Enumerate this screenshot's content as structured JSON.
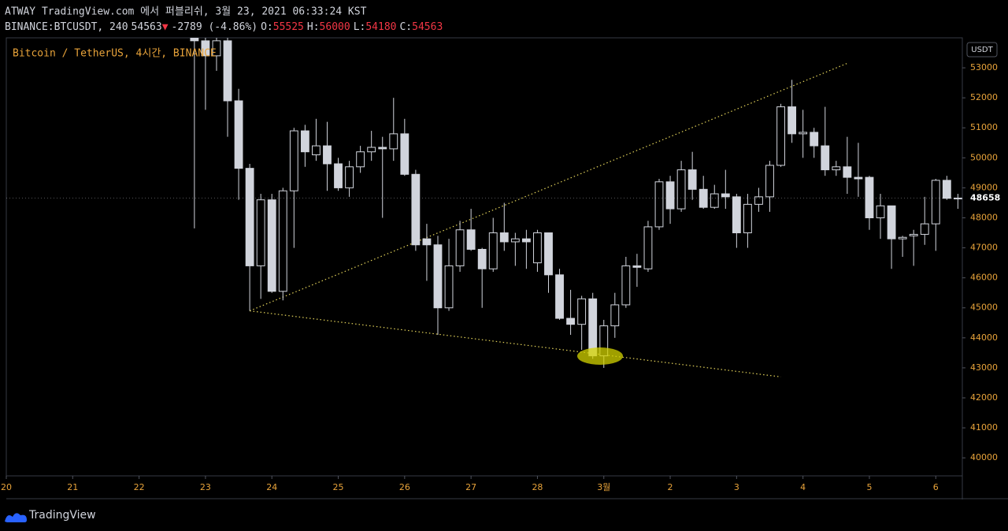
{
  "header": {
    "title": "ATWAY TradingView.com 에서 퍼블리쉬, 3월 23, 2021 06:33:24 KST",
    "segments": [
      {
        "text": "BINANCE:BTCUSDT, 240",
        "color": "#d1d4dc"
      },
      {
        "text": "54563",
        "color": "#d1d4dc"
      },
      {
        "text": "▼",
        "color": "#f23645"
      },
      {
        "text": "-2789 (-4.86%)",
        "color": "#d1d4dc"
      },
      {
        "text": "O:",
        "color": "#d1d4dc"
      },
      {
        "text": "55525",
        "color": "#f23645"
      },
      {
        "text": "H:",
        "color": "#d1d4dc"
      },
      {
        "text": "56000",
        "color": "#f23645"
      },
      {
        "text": "L:",
        "color": "#d1d4dc"
      },
      {
        "text": "54180",
        "color": "#f23645"
      },
      {
        "text": "C:",
        "color": "#d1d4dc"
      },
      {
        "text": "54563",
        "color": "#f23645"
      }
    ]
  },
  "footer": {
    "brand": "TradingView"
  },
  "chart_data": {
    "type": "candlestick",
    "legend": "Bitcoin / TetherUS, 4시간, BINANCE",
    "currency": "USDT",
    "last_price": 48658,
    "up_color": "#000000",
    "down_color": "#d1d4dc",
    "outline_color": "#d1d4dc",
    "trendline_color": "#e3d35a",
    "xlim": [
      0,
      345.6
    ],
    "ylim": [
      39400,
      54000
    ],
    "yticks": [
      40000,
      41000,
      42000,
      43000,
      44000,
      45000,
      46000,
      47000,
      48000,
      49000,
      50000,
      51000,
      52000,
      53000
    ],
    "xticks": [
      {
        "value": 0,
        "label": "20"
      },
      {
        "value": 24,
        "label": "21"
      },
      {
        "value": 48,
        "label": "22"
      },
      {
        "value": 72,
        "label": "23"
      },
      {
        "value": 96,
        "label": "24"
      },
      {
        "value": 120,
        "label": "25"
      },
      {
        "value": 144,
        "label": "26"
      },
      {
        "value": 168,
        "label": "27"
      },
      {
        "value": 192,
        "label": "28"
      },
      {
        "value": 216,
        "label": "3월"
      },
      {
        "value": 240,
        "label": "2"
      },
      {
        "value": 264,
        "label": "3"
      },
      {
        "value": 288,
        "label": "4"
      },
      {
        "value": 312,
        "label": "5"
      },
      {
        "value": 336,
        "label": "6"
      }
    ],
    "x": [
      68,
      72,
      76,
      80,
      84,
      88,
      92,
      96,
      100,
      104,
      108,
      112,
      116,
      120,
      124,
      128,
      132,
      136,
      140,
      144,
      148,
      152,
      156,
      160,
      164,
      168,
      172,
      176,
      180,
      184,
      188,
      192,
      196,
      200,
      204,
      208,
      212,
      216,
      220,
      224,
      228,
      232,
      236,
      240,
      244,
      248,
      252,
      256,
      260,
      264,
      268,
      272,
      276,
      280,
      284,
      288,
      292,
      296,
      300,
      304,
      308,
      312,
      316,
      320,
      324,
      328,
      332,
      336,
      340,
      344
    ],
    "ohlc": [
      [
        54300,
        54600,
        47650,
        53900
      ],
      [
        53900,
        54400,
        51600,
        53400
      ],
      [
        53400,
        54500,
        52900,
        53900
      ],
      [
        53900,
        54200,
        50700,
        51900
      ],
      [
        51900,
        52300,
        48600,
        49650
      ],
      [
        49650,
        49800,
        44900,
        46400
      ],
      [
        46400,
        48800,
        45300,
        48600
      ],
      [
        48600,
        48800,
        45500,
        45550
      ],
      [
        45550,
        49000,
        45250,
        48900
      ],
      [
        48900,
        51000,
        47000,
        50900
      ],
      [
        50900,
        51100,
        49700,
        50200
      ],
      [
        50100,
        51300,
        49900,
        50400
      ],
      [
        50400,
        51200,
        48900,
        49800
      ],
      [
        49800,
        50000,
        48900,
        49000
      ],
      [
        49000,
        49900,
        48700,
        49700
      ],
      [
        49700,
        50400,
        49500,
        50200
      ],
      [
        50200,
        50900,
        49900,
        50350
      ],
      [
        50350,
        50700,
        48000,
        50300
      ],
      [
        50300,
        52000,
        49900,
        50800
      ],
      [
        50800,
        51300,
        49400,
        49450
      ],
      [
        49450,
        49600,
        46900,
        47100
      ],
      [
        47300,
        47800,
        45900,
        47100
      ],
      [
        47100,
        47400,
        44100,
        45000
      ],
      [
        45000,
        47300,
        44900,
        46400
      ],
      [
        46400,
        47900,
        46200,
        47600
      ],
      [
        47600,
        48300,
        46900,
        46950
      ],
      [
        46950,
        47000,
        45000,
        46300
      ],
      [
        46300,
        48000,
        46200,
        47500
      ],
      [
        47500,
        48500,
        46900,
        47200
      ],
      [
        47200,
        47500,
        46400,
        47300
      ],
      [
        47300,
        47600,
        46300,
        47200
      ],
      [
        46500,
        47600,
        46200,
        47500
      ],
      [
        47500,
        47500,
        45500,
        46100
      ],
      [
        46100,
        46300,
        44600,
        44650
      ],
      [
        44650,
        45600,
        44100,
        44450
      ],
      [
        44450,
        45400,
        43600,
        45300
      ],
      [
        45300,
        45500,
        43300,
        43400
      ],
      [
        43400,
        44600,
        43000,
        44400
      ],
      [
        44400,
        45500,
        44000,
        45100
      ],
      [
        45100,
        46700,
        45000,
        46400
      ],
      [
        46400,
        46800,
        45700,
        46350
      ],
      [
        46300,
        47900,
        46200,
        47700
      ],
      [
        47700,
        49300,
        47600,
        49200
      ],
      [
        49200,
        49400,
        47800,
        48300
      ],
      [
        48300,
        49900,
        48200,
        49600
      ],
      [
        49600,
        50200,
        48600,
        48950
      ],
      [
        48950,
        49400,
        48300,
        48350
      ],
      [
        48350,
        49100,
        48300,
        48800
      ],
      [
        48800,
        49600,
        48300,
        48700
      ],
      [
        48700,
        48800,
        47000,
        47500
      ],
      [
        47500,
        48800,
        47000,
        48450
      ],
      [
        48450,
        49000,
        48200,
        48700
      ],
      [
        48700,
        49900,
        48200,
        49750
      ],
      [
        49750,
        51800,
        49700,
        51700
      ],
      [
        51700,
        52600,
        50500,
        50800
      ],
      [
        50800,
        51600,
        50000,
        50850
      ],
      [
        50850,
        51000,
        50000,
        50400
      ],
      [
        50400,
        51700,
        49400,
        49600
      ],
      [
        49600,
        49900,
        49400,
        49700
      ],
      [
        49700,
        50700,
        48800,
        49350
      ],
      [
        49350,
        50500,
        48700,
        49300
      ],
      [
        49350,
        49400,
        47600,
        48000
      ],
      [
        48000,
        48800,
        47300,
        48400
      ],
      [
        48400,
        48400,
        46300,
        47300
      ],
      [
        47300,
        47400,
        46700,
        47350
      ],
      [
        47400,
        47600,
        46400,
        47450
      ],
      [
        47450,
        48700,
        47100,
        47800
      ],
      [
        47800,
        49300,
        46900,
        49250
      ],
      [
        49250,
        49400,
        48600,
        48650
      ],
      [
        48650,
        48800,
        48300,
        48658
      ]
    ],
    "trendlines": [
      {
        "points": [
          [
            88,
            44900
          ],
          [
            304,
            53150
          ]
        ]
      },
      {
        "points": [
          [
            88,
            44900
          ],
          [
            280,
            42700
          ]
        ]
      }
    ]
  }
}
